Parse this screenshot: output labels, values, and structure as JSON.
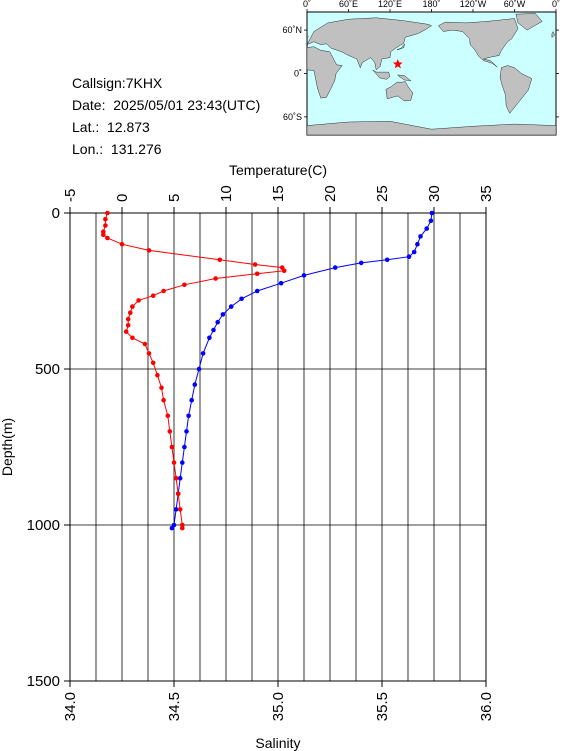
{
  "station": {
    "callsign": "Callsign:7KHX",
    "date": "Date:  2025/05/01 23:43(UTC)",
    "lat": "Lat.:  12.873",
    "lon": "Lon.:  131.276"
  },
  "map": {
    "lon_labels": [
      "0˚",
      "60˚E",
      "120˚E",
      "180˚",
      "120˚W",
      "60˚W",
      "0˚"
    ],
    "lat_labels": [
      "60˚N",
      "0˚",
      "60˚S"
    ],
    "ocean_color": "#ccffff",
    "land_color": "#c0c0c0",
    "marker_color": "#ff0000"
  },
  "chart_data": {
    "type": "line",
    "xlabel_top": "Temperature(C)",
    "xlabel_bottom": "Salinity",
    "ylabel": "Depth(m)",
    "temperature_ticks": [
      "-5",
      "0",
      "5",
      "10",
      "15",
      "20",
      "25",
      "30",
      "35"
    ],
    "salinity_ticks": [
      "34.0",
      "34.5",
      "35.0",
      "35.5",
      "36.0"
    ],
    "depth_ticks": [
      "0",
      "500",
      "1000",
      "1500"
    ],
    "temperature_range": [
      -5,
      35
    ],
    "salinity_range": [
      34.0,
      36.0
    ],
    "depth_range": [
      0,
      1500
    ],
    "grid": true,
    "series": [
      {
        "name": "Temperature",
        "color": "#0000ff",
        "axis": "temperature",
        "depth": [
          0,
          25,
          50,
          75,
          100,
          125,
          140,
          150,
          160,
          175,
          200,
          225,
          250,
          275,
          300,
          325,
          350,
          375,
          400,
          450,
          500,
          550,
          600,
          650,
          700,
          750,
          800,
          850,
          900,
          950,
          1000,
          1010
        ],
        "values": [
          29.8,
          29.7,
          29.3,
          28.7,
          28.4,
          28.1,
          27.6,
          25.5,
          23.0,
          20.5,
          17.5,
          15.3,
          13.0,
          11.5,
          10.5,
          9.7,
          9.2,
          8.8,
          8.4,
          7.8,
          7.4,
          7.0,
          6.7,
          6.4,
          6.2,
          6.0,
          5.8,
          5.6,
          5.4,
          5.2,
          5.0,
          4.8
        ]
      },
      {
        "name": "Salinity",
        "color": "#ff0000",
        "axis": "salinity",
        "depth": [
          0,
          20,
          40,
          60,
          70,
          80,
          100,
          120,
          150,
          165,
          175,
          185,
          195,
          210,
          230,
          250,
          265,
          280,
          300,
          320,
          340,
          360,
          380,
          400,
          420,
          450,
          480,
          520,
          560,
          600,
          650,
          700,
          750,
          800,
          850,
          900,
          950,
          1000,
          1010
        ],
        "values": [
          34.18,
          34.17,
          34.17,
          34.16,
          34.16,
          34.18,
          34.25,
          34.38,
          34.72,
          34.89,
          35.02,
          35.03,
          34.9,
          34.7,
          34.55,
          34.45,
          34.4,
          34.33,
          34.3,
          34.29,
          34.28,
          34.28,
          34.27,
          34.3,
          34.36,
          34.38,
          34.4,
          34.42,
          34.44,
          34.45,
          34.47,
          34.48,
          34.49,
          34.5,
          34.51,
          34.52,
          34.53,
          34.54,
          34.54
        ]
      }
    ]
  }
}
